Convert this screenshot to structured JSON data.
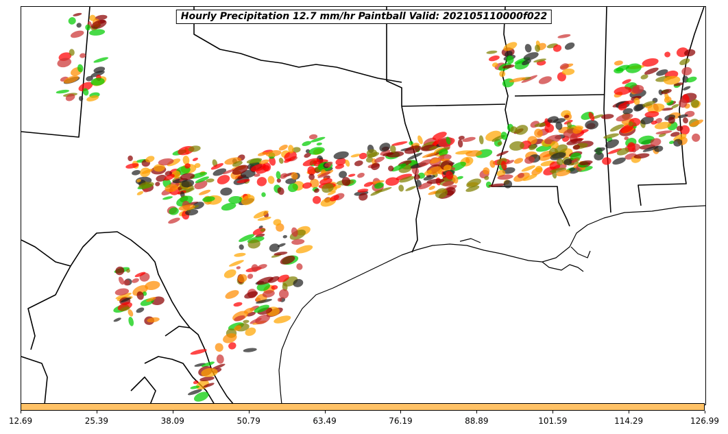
{
  "title": "Hourly Precipitation 12.7 mm/hr Paintball Valid: 202105110000f022",
  "colorbar": {
    "color": "#ffc266",
    "ticks": [
      "12.69",
      "25.39",
      "38.09",
      "50.79",
      "63.49",
      "76.19",
      "88.89",
      "101.59",
      "114.29",
      "126.99"
    ],
    "range": [
      12.69,
      126.99
    ]
  },
  "colors": {
    "members": [
      "#00cc00",
      "#ff0000",
      "#8b0000",
      "#ff8c00",
      "#808000",
      "#222222",
      "#ffa500",
      "#cc3333"
    ]
  },
  "icons": [
    "state-boundary-lines",
    "coastline"
  ]
}
